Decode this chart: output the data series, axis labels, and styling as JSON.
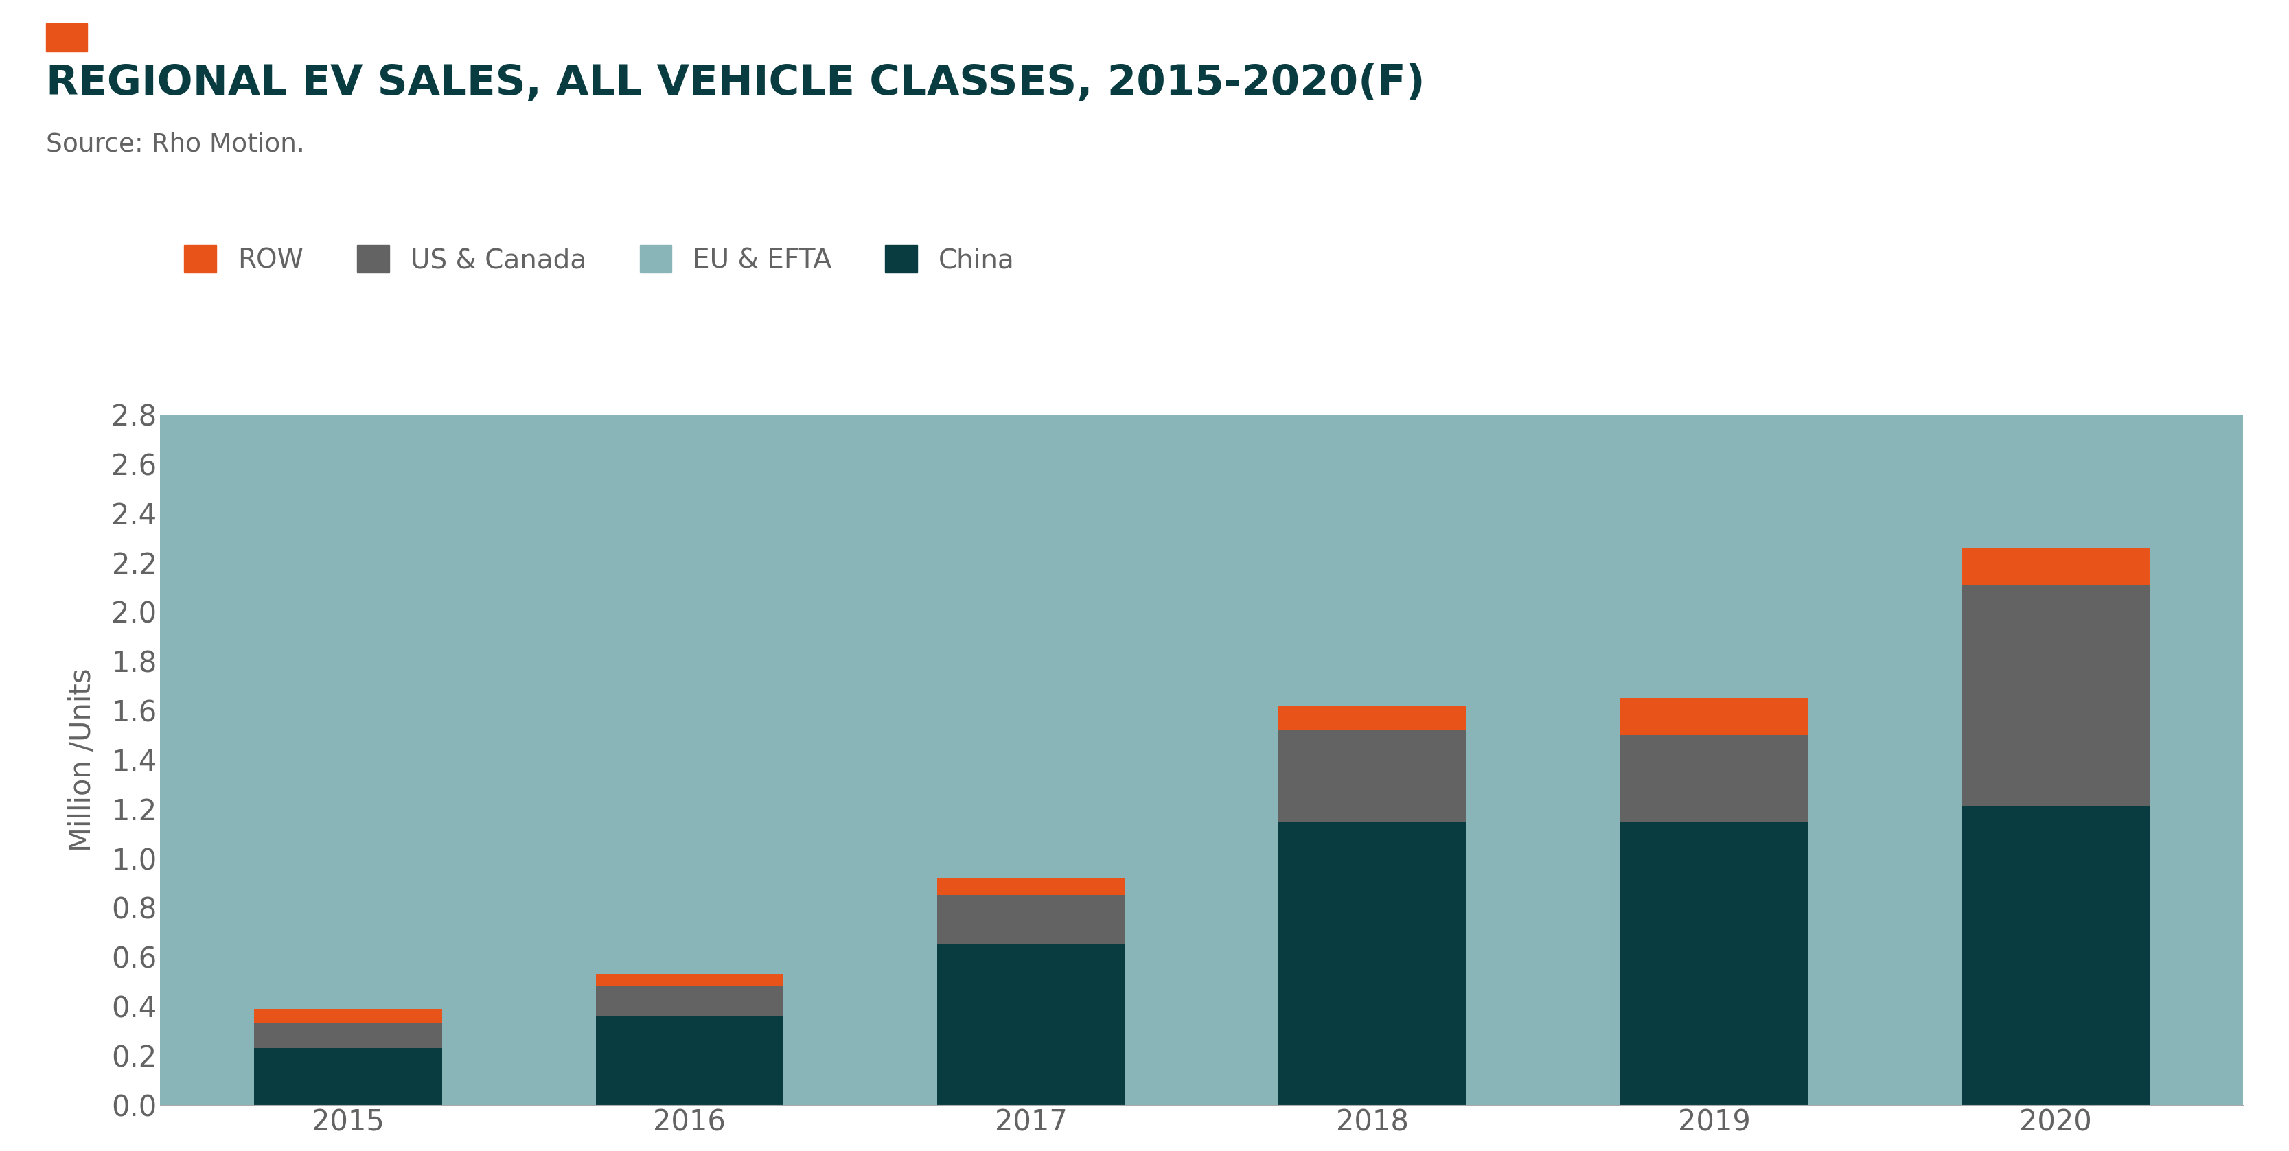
{
  "title": "REGIONAL EV SALES, ALL VEHICLE CLASSES, 2015-2020(F)",
  "subtitle": "Source: Rho Motion.",
  "ylabel": "Million /Units",
  "years": [
    2015,
    2016,
    2017,
    2018,
    2019,
    2020
  ],
  "china": [
    0.23,
    0.36,
    0.65,
    1.15,
    1.15,
    1.21
  ],
  "us_canada": [
    0.1,
    0.12,
    0.2,
    0.37,
    0.35,
    0.9
  ],
  "row": [
    0.06,
    0.05,
    0.07,
    0.1,
    0.15,
    0.15
  ],
  "eu_efta": [
    2.41,
    2.27,
    1.88,
    1.33,
    1.35,
    0.54
  ],
  "colors": {
    "china": "#083c41",
    "eu_efta": "#8ab5b8",
    "us_canada": "#636363",
    "row": "#e8531a"
  },
  "background_color": "#ffffff",
  "plot_bg_color": "#8ab5b8",
  "ylim": [
    0,
    2.8
  ],
  "yticks": [
    0.0,
    0.2,
    0.4,
    0.6,
    0.8,
    1.0,
    1.2,
    1.4,
    1.6,
    1.8,
    2.0,
    2.2,
    2.4,
    2.6,
    2.8
  ],
  "title_color": "#083c41",
  "subtitle_color": "#636363",
  "axis_label_color": "#636363",
  "tick_color": "#636363",
  "accent_color": "#e8531a"
}
